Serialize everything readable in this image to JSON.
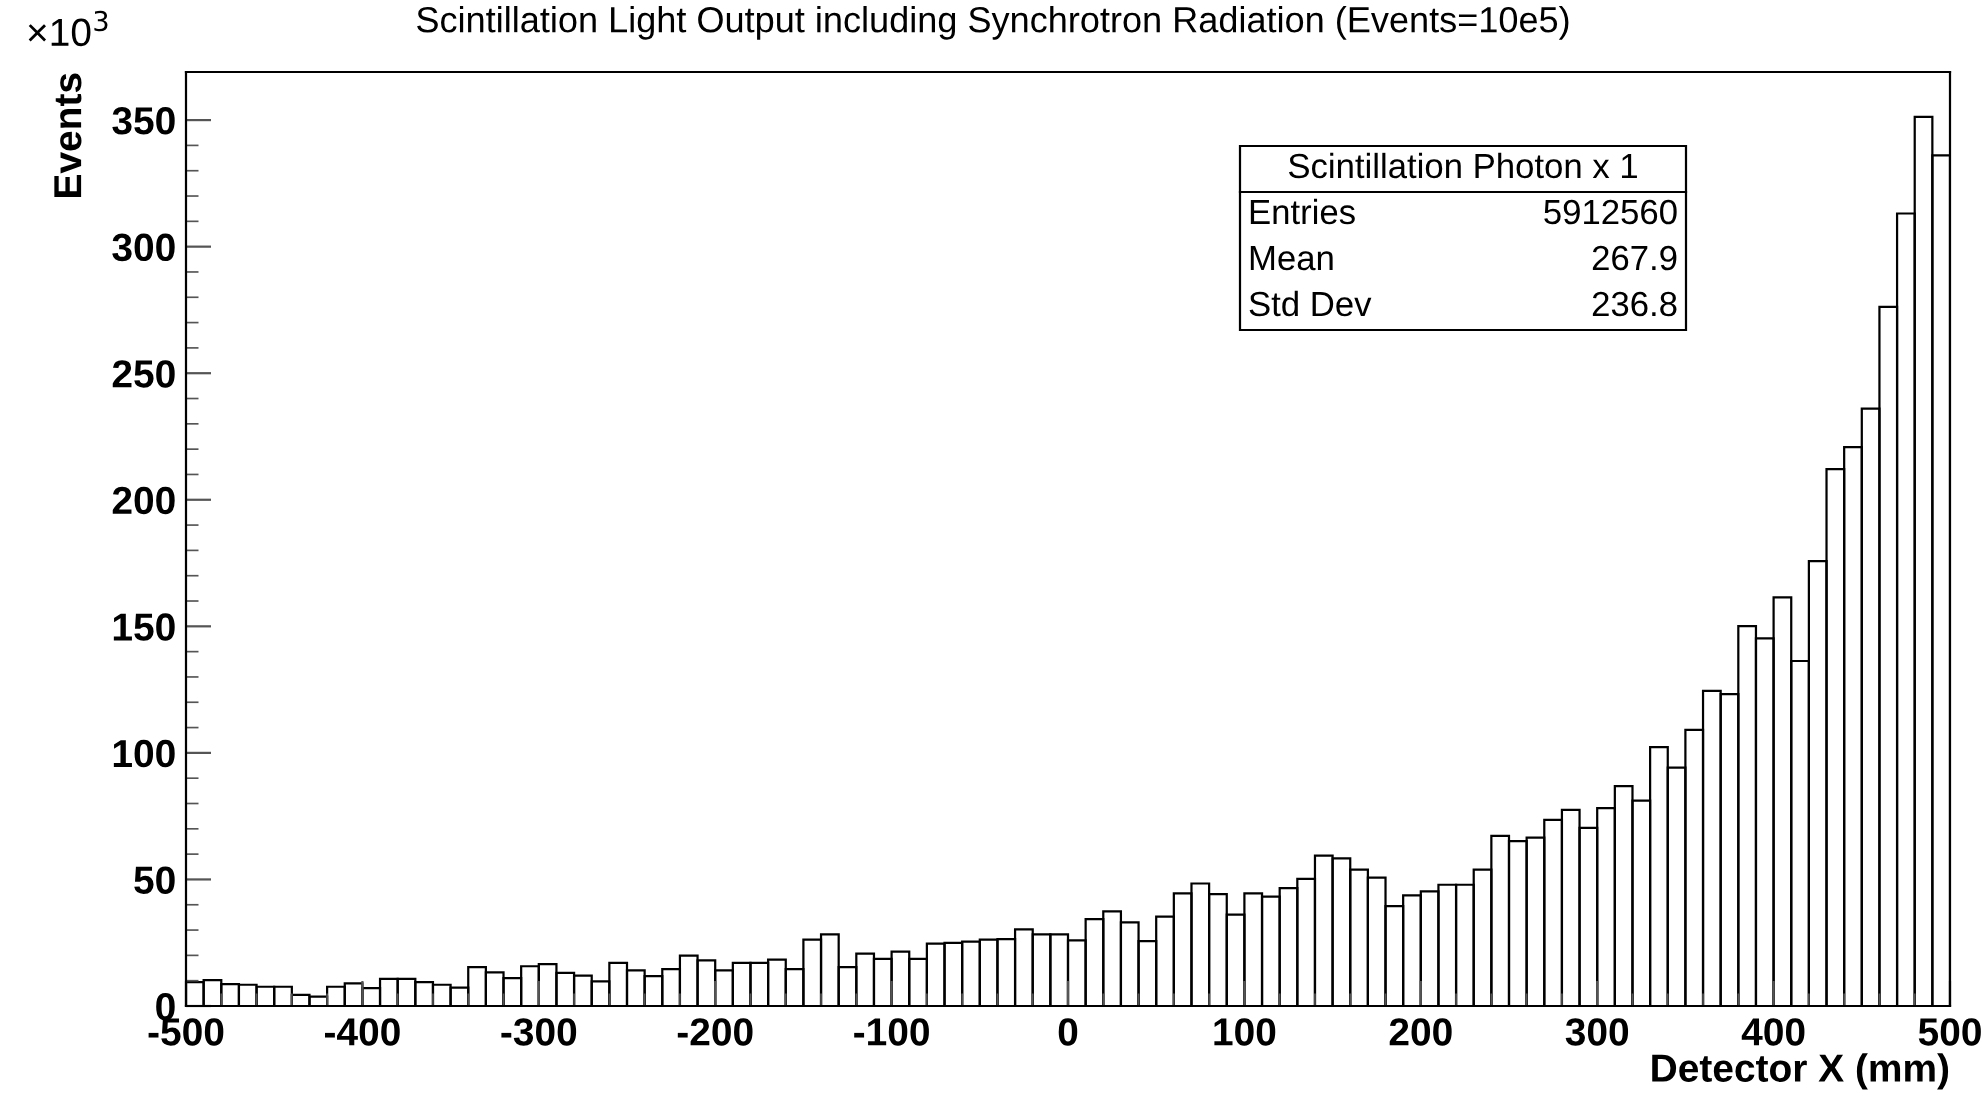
{
  "chart_data": {
    "type": "histogram",
    "title": "Scintillation Light Output including Synchrotron Radiation (Events=10e5)",
    "xlabel": "Detector X (mm)",
    "ylabel": "Events",
    "bins": [
      -500,
      -490,
      -480,
      -470,
      -460,
      -450,
      -440,
      -430,
      -420,
      -410,
      -400,
      -390,
      -380,
      -370,
      -360,
      -350,
      -340,
      -330,
      -320,
      -310,
      -300,
      -290,
      -280,
      -270,
      -260,
      -250,
      -240,
      -230,
      -220,
      -210,
      -200,
      -190,
      -180,
      -170,
      -160,
      -150,
      -140,
      -130,
      -120,
      -110,
      -100,
      -90,
      -80,
      -70,
      -60,
      -50,
      -40,
      -30,
      -20,
      -10,
      0,
      10,
      20,
      30,
      40,
      50,
      60,
      70,
      80,
      90,
      100,
      110,
      120,
      130,
      140,
      150,
      160,
      170,
      180,
      190,
      200,
      210,
      220,
      230,
      240,
      250,
      260,
      270,
      280,
      290,
      300,
      310,
      320,
      330,
      340,
      350,
      360,
      370,
      380,
      390,
      400,
      410,
      420,
      430,
      440,
      450,
      460,
      470,
      480,
      490,
      500
    ],
    "values": [
      9.4,
      10.2,
      8.6,
      8.4,
      7.6,
      7.6,
      4.4,
      3.7,
      7.6,
      8.9,
      7.1,
      10.7,
      10.7,
      9.4,
      8.4,
      7.3,
      15.4,
      13.3,
      11,
      15.7,
      16.5,
      13.1,
      12,
      9.7,
      17,
      14.1,
      11.8,
      14.6,
      19.9,
      18,
      14.1,
      17,
      17,
      18.3,
      14.6,
      26.2,
      28.3,
      15.4,
      20.7,
      18.6,
      21.5,
      18.6,
      24.6,
      24.9,
      25.4,
      26.2,
      26.4,
      30.3,
      28.3,
      28.3,
      25.9,
      34.3,
      37.4,
      33,
      25.6,
      35.3,
      44.5,
      48.4,
      44.2,
      36.1,
      44.5,
      43.2,
      46.6,
      50.2,
      59.4,
      58.3,
      53.9,
      50.7,
      39.5,
      43.7,
      45.3,
      47.9,
      47.9,
      53.9,
      67.2,
      65.1,
      66.5,
      73.5,
      77.5,
      70.4,
      78.2,
      86.9,
      81.1,
      102.3,
      94.2,
      109.1,
      124.5,
      123.2,
      150.1,
      145.2,
      161.4,
      136.3,
      175.8,
      212.1,
      220.8,
      236,
      276.2,
      313.1,
      351.3,
      336.1
    ],
    "color": "#000000",
    "xlim": [
      -500,
      500
    ],
    "xticks": [
      -500,
      -400,
      -300,
      -200,
      -100,
      0,
      100,
      200,
      300,
      400,
      500
    ],
    "ylim": [
      0,
      369
    ],
    "yticks": [
      0,
      50,
      100,
      150,
      200,
      250,
      300,
      350
    ],
    "grid": false,
    "legend": false,
    "annotations": [
      "×10$^{3}$",
      "Scintillation Photon x 1",
      "Entries",
      "5912560",
      "Mean",
      "267.9",
      "Std Dev",
      "236.8"
    ]
  }
}
